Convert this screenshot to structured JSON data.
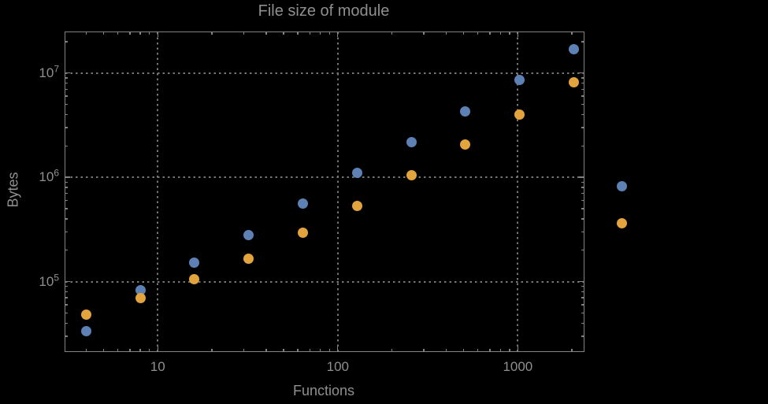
{
  "page": {
    "background": "#000000",
    "text_color": "#8f8f8f",
    "frame_color": "#828282",
    "grid_color": "#757575"
  },
  "chart_data": {
    "type": "scatter",
    "title": "File size of module",
    "xlabel": "Functions",
    "ylabel": "Bytes",
    "xscale": "log",
    "yscale": "log",
    "xlim": [
      3.07,
      2322
    ],
    "ylim": [
      21500,
      24600000
    ],
    "grid": "dotted",
    "legend": "none",
    "marker_diameter_px": 13,
    "x_major_ticks": [
      {
        "value": 10,
        "label": "10"
      },
      {
        "value": 100,
        "label": "100"
      },
      {
        "value": 1000,
        "label": "1000"
      }
    ],
    "y_major_ticks": [
      {
        "value": 100000,
        "base": "10",
        "exp": "5"
      },
      {
        "value": 1000000,
        "base": "10",
        "exp": "6"
      },
      {
        "value": 10000000,
        "base": "10",
        "exp": "7"
      }
    ],
    "x_minor_ticks": [
      4,
      5,
      6,
      7,
      8,
      9,
      20,
      30,
      40,
      50,
      60,
      70,
      80,
      90,
      200,
      300,
      400,
      500,
      600,
      700,
      800,
      900,
      2000
    ],
    "y_minor_ticks": [
      30000,
      40000,
      50000,
      60000,
      70000,
      80000,
      90000,
      200000,
      300000,
      400000,
      500000,
      600000,
      700000,
      800000,
      900000,
      2000000,
      3000000,
      4000000,
      5000000,
      6000000,
      7000000,
      8000000,
      9000000,
      20000000
    ],
    "series": [
      {
        "name": "series-1",
        "color": "#5E81B5",
        "points": [
          [
            4,
            33500
          ],
          [
            8,
            83000
          ],
          [
            16,
            151000
          ],
          [
            32,
            281000
          ],
          [
            64,
            556000
          ],
          [
            128,
            1110000
          ],
          [
            256,
            2190000
          ],
          [
            512,
            4310000
          ],
          [
            1024,
            8650000
          ],
          [
            2048,
            17000000
          ],
          [
            3800,
            820000
          ]
        ]
      },
      {
        "name": "series-2",
        "color": "#E3A33D",
        "points": [
          [
            4,
            48500
          ],
          [
            8,
            70000
          ],
          [
            16,
            105000
          ],
          [
            32,
            167000
          ],
          [
            64,
            292000
          ],
          [
            128,
            536000
          ],
          [
            256,
            1040000
          ],
          [
            512,
            2050000
          ],
          [
            1024,
            4030000
          ],
          [
            2048,
            8100000
          ],
          [
            3800,
            360000
          ]
        ]
      }
    ]
  }
}
